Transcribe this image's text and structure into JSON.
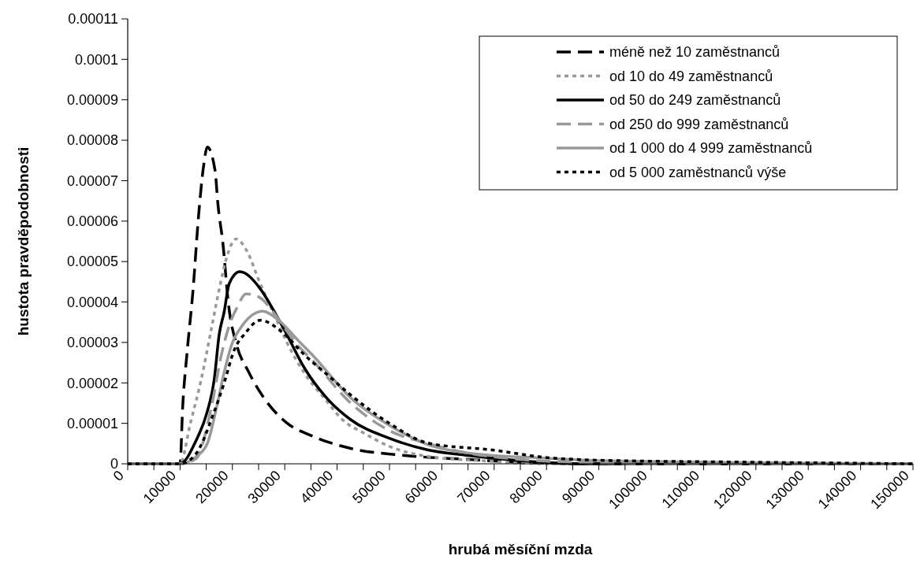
{
  "chart_data": {
    "type": "line",
    "xlabel": "hrubá měsíční mzda",
    "ylabel": "hustota pravděpodobnosti",
    "xlim": [
      0,
      150000
    ],
    "ylim": [
      0,
      0.00011
    ],
    "xticks": [
      0,
      {
        "value": 5000,
        "label": null
      },
      10000,
      {
        "value": 15000,
        "label": null
      },
      20000,
      {
        "value": 25000,
        "label": null
      },
      30000,
      {
        "value": 35000,
        "label": null
      },
      40000,
      {
        "value": 45000,
        "label": null
      },
      50000,
      {
        "value": 55000,
        "label": null
      },
      60000,
      {
        "value": 65000,
        "label": null
      },
      70000,
      {
        "value": 75000,
        "label": null
      },
      80000,
      {
        "value": 85000,
        "label": null
      },
      90000,
      {
        "value": 95000,
        "label": null
      },
      100000,
      {
        "value": 105000,
        "label": null
      },
      110000,
      {
        "value": 115000,
        "label": null
      },
      120000,
      {
        "value": 125000,
        "label": null
      },
      130000,
      {
        "value": 135000,
        "label": null
      },
      140000,
      {
        "value": 145000,
        "label": null
      },
      150000
    ],
    "yticks": [
      0,
      {
        "value": 1e-05,
        "label": "0.00001"
      },
      {
        "value": 2e-05,
        "label": "0.00002"
      },
      {
        "value": 3e-05,
        "label": "0.00003"
      },
      {
        "value": 4e-05,
        "label": "0.00004"
      },
      {
        "value": 5e-05,
        "label": "0.00005"
      },
      {
        "value": 6e-05,
        "label": "0.00006"
      },
      {
        "value": 7e-05,
        "label": "0.00007"
      },
      {
        "value": 8e-05,
        "label": "0.00008"
      },
      {
        "value": 9e-05,
        "label": "0.00009"
      },
      {
        "value": 0.0001,
        "label": "0.0001"
      },
      {
        "value": 0.00011,
        "label": "0.00011"
      }
    ],
    "grid": false,
    "legend": "top right",
    "marker": "none",
    "series": [
      {
        "name": "méně než 10 zaměstnanců",
        "color": "#000000",
        "line_style": "dashed",
        "x": [
          0,
          10000,
          10500,
          11300,
          12500,
          13500,
          14500,
          15200,
          16700,
          17200,
          18200,
          19200,
          20900,
          22900,
          25800,
          30300,
          35200,
          42600,
          52500,
          64800,
          74700,
          90000,
          150000
        ],
        "values": [
          0,
          0,
          1.41e-05,
          2.7e-05,
          4.33e-05,
          6.08e-05,
          7.37e-05,
          7.83e-05,
          7.24e-05,
          6.46e-05,
          5.43e-05,
          4e-05,
          2.9e-05,
          2.32e-05,
          1.67e-05,
          1.02e-05,
          6.9e-06,
          3.8e-06,
          2.1e-06,
          1.1e-06,
          4e-07,
          0,
          0
        ]
      },
      {
        "name": "od 10 do 49 zaměstnanců",
        "color": "#999999",
        "line_style": "dotted",
        "x": [
          0,
          10000,
          12000,
          14000,
          16000,
          17500,
          18900,
          20700,
          22900,
          25100,
          27800,
          30300,
          33700,
          37700,
          41100,
          45100,
          50000,
          57400,
          67300,
          80000,
          150000
        ],
        "values": [
          0,
          0,
          1.02e-05,
          2.06e-05,
          3.35e-05,
          4.33e-05,
          5.1e-05,
          5.56e-05,
          5.23e-05,
          4.52e-05,
          3.74e-05,
          3.03e-05,
          2.25e-05,
          1.6e-05,
          1.08e-05,
          7.6e-06,
          4.3e-06,
          1.8e-06,
          8e-07,
          0,
          0
        ]
      },
      {
        "name": "od 50 do 249 zaměstnanců",
        "color": "#000000",
        "line_style": "solid",
        "x": [
          0,
          10000,
          13000,
          15000,
          16500,
          17500,
          18400,
          19400,
          21400,
          25300,
          27800,
          30300,
          33700,
          37700,
          42600,
          50000,
          57400,
          64800,
          74700,
          87000,
          150000
        ],
        "values": [
          0,
          0,
          5.6e-06,
          1.21e-05,
          2.06e-05,
          3.22e-05,
          3.74e-05,
          4.46e-05,
          4.75e-05,
          4.33e-05,
          3.81e-05,
          3.22e-05,
          2.38e-05,
          1.67e-05,
          1.09e-05,
          6.3e-06,
          3.4e-06,
          2.1e-06,
          8e-07,
          0,
          0
        ]
      },
      {
        "name": "od 250 do 999 zaměstnanců",
        "color": "#999999",
        "line_style": "dashed",
        "x": [
          0,
          10000,
          13000,
          16000,
          17900,
          19400,
          20900,
          22600,
          25100,
          27800,
          30300,
          32700,
          35200,
          42600,
          50000,
          57400,
          64800,
          74700,
          84500,
          100000,
          150000
        ],
        "values": [
          0,
          0,
          1.2e-06,
          1.41e-05,
          2.7e-05,
          3.42e-05,
          3.87e-05,
          4.2e-05,
          4.12e-05,
          3.75e-05,
          3.3e-05,
          2.9e-05,
          2.57e-05,
          1.5e-05,
          8.2e-06,
          5e-06,
          2.7e-06,
          1.1e-06,
          4e-07,
          0,
          0
        ]
      },
      {
        "name": "od 1 000 do 4 999 zaměstnanců",
        "color": "#999999",
        "line_style": "solid",
        "x": [
          0,
          10000,
          13000,
          15200,
          17000,
          18400,
          19900,
          21900,
          25800,
          28800,
          32700,
          35200,
          42600,
          50000,
          57400,
          64800,
          79600,
          89400,
          118800,
          150000
        ],
        "values": [
          0,
          0,
          1.7e-06,
          5e-06,
          1.41e-05,
          2.25e-05,
          2.96e-05,
          3.42e-05,
          3.77e-05,
          3.55e-05,
          3.03e-05,
          2.7e-05,
          1.63e-05,
          9.5e-06,
          4.7e-06,
          2.7e-06,
          1.4e-06,
          8e-07,
          3e-07,
          0
        ]
      },
      {
        "name": "od 5 000 zaměstnanců výše",
        "color": "#000000",
        "line_style": "dotted",
        "x": [
          0,
          10000,
          13000,
          16500,
          18400,
          20400,
          22400,
          25300,
          29800,
          33700,
          37700,
          42600,
          50000,
          57400,
          69700,
          79600,
          89400,
          118800,
          150000
        ],
        "values": [
          0,
          0,
          2.4e-06,
          1.28e-05,
          1.99e-05,
          2.83e-05,
          3.22e-05,
          3.55e-05,
          3.22e-05,
          2.7e-05,
          2.25e-05,
          1.7e-05,
          1e-05,
          5.1e-06,
          3.4e-06,
          1.6e-06,
          9e-07,
          4e-07,
          0
        ]
      }
    ]
  }
}
